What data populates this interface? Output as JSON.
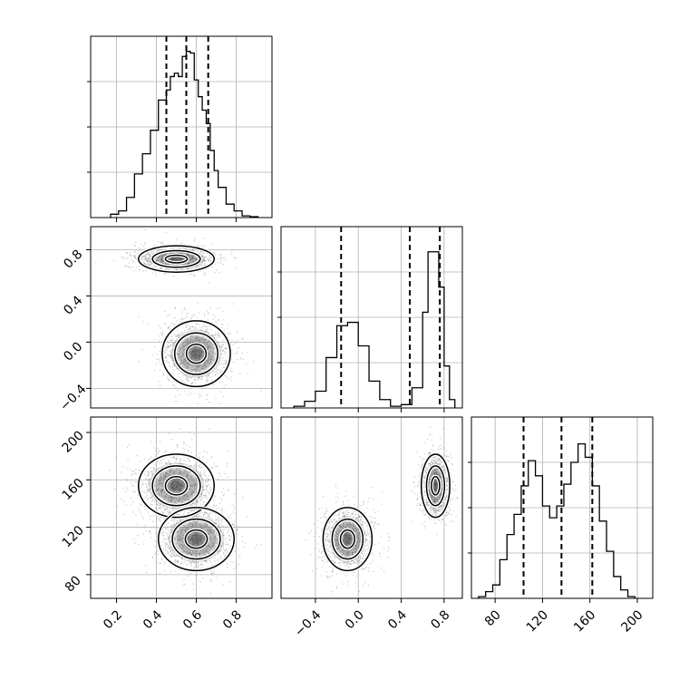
{
  "figure": {
    "background": "#ffffff",
    "grid": true,
    "colors": {
      "hist": "#000000",
      "quantile": "#000000",
      "grid": "#b0b0b0",
      "points": "#555555"
    }
  },
  "chart_data": [
    {
      "panel": "p0-hist",
      "type": "histogram",
      "xlim": [
        0.07,
        0.98
      ],
      "xticks": [
        0.2,
        0.4,
        0.6,
        0.8
      ],
      "quantiles": [
        0.45,
        0.55,
        0.66
      ],
      "bin_edges": [
        0.17,
        0.21,
        0.25,
        0.29,
        0.33,
        0.37,
        0.41,
        0.45,
        0.47,
        0.49,
        0.51,
        0.53,
        0.55,
        0.57,
        0.59,
        0.61,
        0.63,
        0.65,
        0.67,
        0.69,
        0.71,
        0.75,
        0.79,
        0.83,
        0.87,
        0.91
      ],
      "counts_normalized": [
        0.02,
        0.04,
        0.12,
        0.26,
        0.38,
        0.52,
        0.7,
        0.76,
        0.84,
        0.86,
        0.84,
        0.96,
        0.99,
        0.98,
        0.82,
        0.72,
        0.64,
        0.56,
        0.4,
        0.28,
        0.18,
        0.08,
        0.04,
        0.01,
        0.005
      ],
      "tick_labels_shown": false
    },
    {
      "panel": "p1-vs-p0",
      "type": "contour-density",
      "xlim": [
        0.07,
        0.98
      ],
      "ylim": [
        -0.57,
        1.0
      ],
      "yticks": [
        -0.4,
        0.0,
        0.4,
        0.8
      ],
      "ytick_labels": [
        "−0.4",
        "0.0",
        "0.4",
        "0.8"
      ],
      "modes": [
        {
          "x": 0.5,
          "y": 0.72,
          "sx": 0.1,
          "sy": 0.06
        },
        {
          "x": 0.6,
          "y": -0.1,
          "sx": 0.09,
          "sy": 0.15
        }
      ]
    },
    {
      "panel": "p1-hist",
      "type": "histogram",
      "xlim": [
        -0.72,
        0.97
      ],
      "xticks": [
        -0.4,
        0.0,
        0.4,
        0.8
      ],
      "quantiles": [
        -0.16,
        0.48,
        0.76
      ],
      "bin_edges": [
        -0.6,
        -0.5,
        -0.4,
        -0.3,
        -0.2,
        -0.1,
        0.0,
        0.1,
        0.2,
        0.3,
        0.4,
        0.5,
        0.6,
        0.65,
        0.7,
        0.75,
        0.8,
        0.85,
        0.9
      ],
      "counts_normalized": [
        0.01,
        0.04,
        0.1,
        0.3,
        0.49,
        0.51,
        0.37,
        0.16,
        0.05,
        0.01,
        0.02,
        0.12,
        0.57,
        0.93,
        0.93,
        0.72,
        0.25,
        0.05
      ],
      "tick_labels_shown": false
    },
    {
      "panel": "p2-vs-p0",
      "type": "contour-density",
      "xlim": [
        0.07,
        0.98
      ],
      "ylim": [
        60,
        213
      ],
      "xticks": [
        0.2,
        0.4,
        0.6,
        0.8
      ],
      "xtick_labels": [
        "0.2",
        "0.4",
        "0.6",
        "0.8"
      ],
      "yticks": [
        80,
        120,
        160,
        200
      ],
      "ytick_labels": [
        "80",
        "120",
        "160",
        "200"
      ],
      "modes": [
        {
          "x": 0.5,
          "y": 155,
          "sx": 0.1,
          "sy": 14
        },
        {
          "x": 0.6,
          "y": 110,
          "sx": 0.1,
          "sy": 14
        }
      ]
    },
    {
      "panel": "p2-vs-p1",
      "type": "contour-density",
      "xlim": [
        -0.72,
        0.97
      ],
      "ylim": [
        60,
        213
      ],
      "xticks": [
        -0.4,
        0.0,
        0.4,
        0.8
      ],
      "xtick_labels": [
        "−0.4",
        "0.0",
        "0.4",
        "0.8"
      ],
      "modes": [
        {
          "x": 0.72,
          "y": 155,
          "sx": 0.07,
          "sy": 14
        },
        {
          "x": -0.1,
          "y": 110,
          "sx": 0.12,
          "sy": 14
        }
      ]
    },
    {
      "panel": "p2-hist",
      "type": "histogram",
      "xlim": [
        60,
        213
      ],
      "xticks": [
        80,
        120,
        160,
        200
      ],
      "xtick_labels": [
        "80",
        "120",
        "160",
        "200"
      ],
      "quantiles": [
        104,
        136,
        162
      ],
      "bin_edges": [
        66,
        72,
        78,
        84,
        90,
        96,
        102,
        108,
        114,
        120,
        126,
        132,
        138,
        144,
        150,
        156,
        162,
        168,
        174,
        180,
        186,
        192,
        198
      ],
      "counts_normalized": [
        0.01,
        0.04,
        0.08,
        0.23,
        0.38,
        0.5,
        0.67,
        0.82,
        0.73,
        0.55,
        0.48,
        0.55,
        0.68,
        0.81,
        0.92,
        0.84,
        0.67,
        0.46,
        0.28,
        0.13,
        0.05,
        0.01
      ],
      "tick_labels_shown": true
    }
  ]
}
